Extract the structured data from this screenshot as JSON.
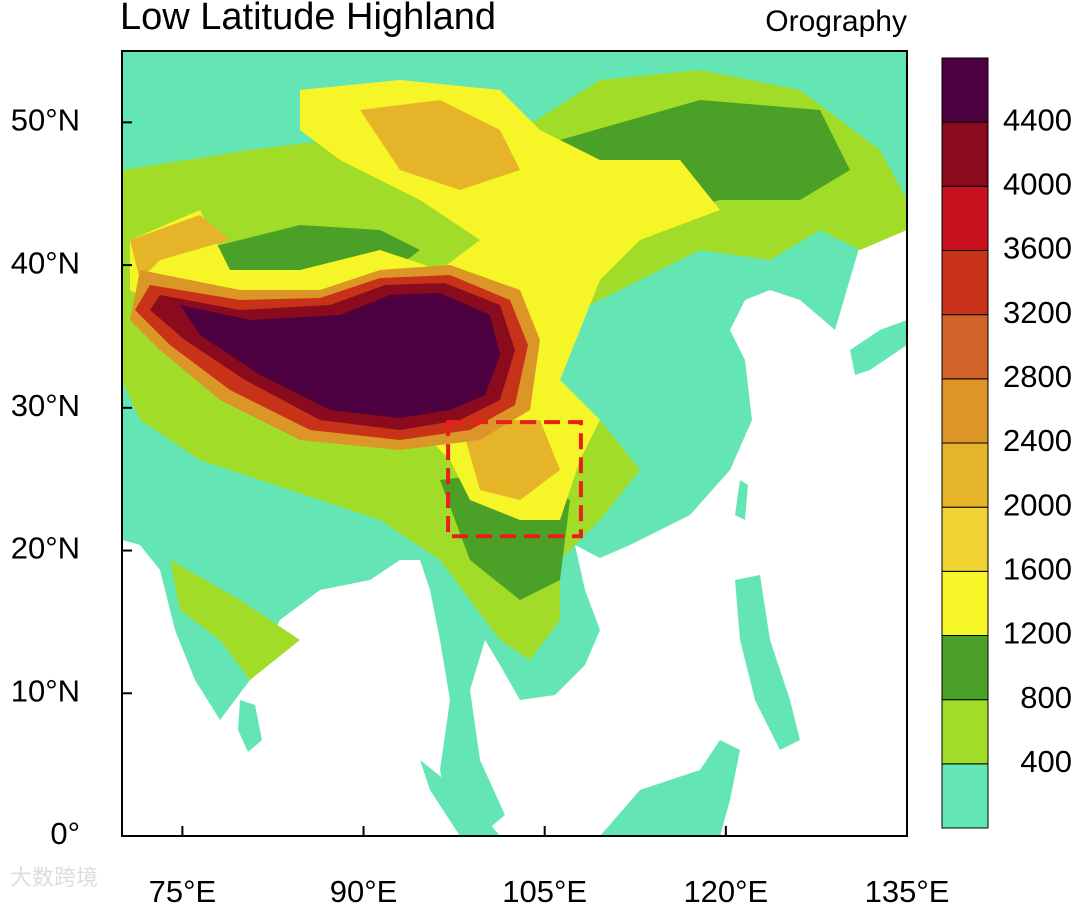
{
  "title": "Low Latitude Highland",
  "subtitle": "Orography",
  "watermark": "大数跨境",
  "map": {
    "xlim": [
      70,
      135
    ],
    "ylim": [
      0,
      55
    ],
    "xticks": [
      {
        "value": 75,
        "label": "75°E"
      },
      {
        "value": 90,
        "label": "90°E"
      },
      {
        "value": 105,
        "label": "105°E"
      },
      {
        "value": 120,
        "label": "120°E"
      },
      {
        "value": 135,
        "label": "135°E"
      }
    ],
    "yticks": [
      {
        "value": 0,
        "label": "0°"
      },
      {
        "value": 10,
        "label": "10°N"
      },
      {
        "value": 20,
        "label": "20°N"
      },
      {
        "value": 30,
        "label": "30°N"
      },
      {
        "value": 40,
        "label": "40°N"
      },
      {
        "value": 50,
        "label": "50°N"
      }
    ],
    "box": {
      "lon": [
        97,
        108
      ],
      "lat": [
        21,
        29
      ],
      "color": "#e8201c"
    }
  },
  "colorbar": {
    "levels": [
      400,
      800,
      1200,
      1600,
      2000,
      2400,
      2800,
      3200,
      3600,
      4000,
      4400
    ],
    "colors": [
      "#64e6b4",
      "#a0dc28",
      "#4ba028",
      "#f5f528",
      "#f0d232",
      "#e6b428",
      "#dc9628",
      "#d2642a",
      "#c83218",
      "#c8101e",
      "#8a0a1e",
      "#4d0040"
    ]
  }
}
